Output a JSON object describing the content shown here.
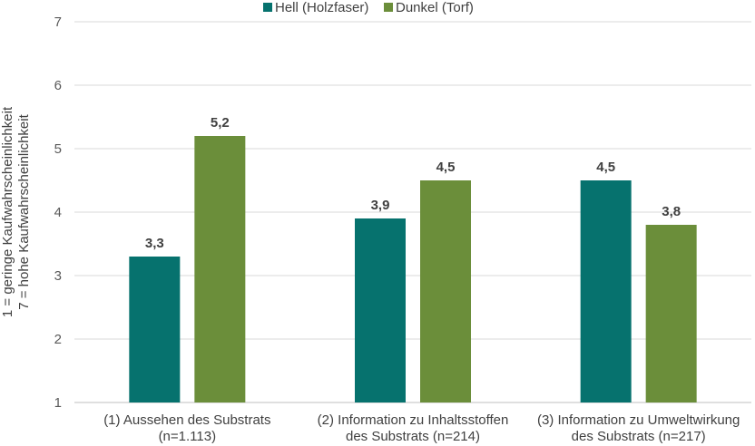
{
  "chart_data": {
    "type": "bar",
    "categories": [
      [
        "(1) Aussehen des Substrats",
        "(n=1.113)"
      ],
      [
        "(2) Information zu Inhaltsstoffen",
        "des Substrats (n=214)"
      ],
      [
        "(3) Information zu Umweltwirkung",
        "des Substrats (n=217)"
      ]
    ],
    "series": [
      {
        "name": "Hell (Holzfaser)",
        "color": "#06726E",
        "values": [
          3.3,
          3.9,
          4.5
        ],
        "labels": [
          "3,3",
          "3,9",
          "4,5"
        ]
      },
      {
        "name": "Dunkel (Torf)",
        "color": "#6B8E3A",
        "values": [
          5.2,
          4.5,
          3.8
        ],
        "labels": [
          "5,2",
          "4,5",
          "3,8"
        ]
      }
    ],
    "ylabel": [
      "1 = geringe Kaufwahrscheinlichkeit",
      "7 = hohe Kaufwahrscheinlichkeit"
    ],
    "ylim": [
      1,
      7
    ],
    "yticks": [
      "1",
      "2",
      "3",
      "4",
      "5",
      "6",
      "7"
    ],
    "grid": true,
    "legend": "top"
  }
}
